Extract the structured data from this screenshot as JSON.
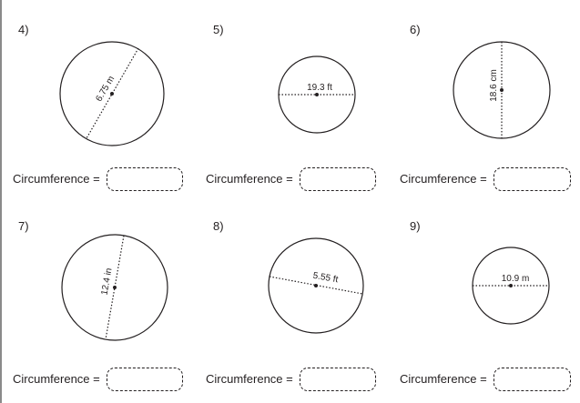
{
  "problems": [
    {
      "number": "4)",
      "measure": "6.75 m",
      "answer_label": "Circumference =",
      "answer_value": ""
    },
    {
      "number": "5)",
      "measure": "19.3 ft",
      "answer_label": "Circumference =",
      "answer_value": ""
    },
    {
      "number": "6)",
      "measure": "18.6 cm",
      "answer_label": "Circumference =",
      "answer_value": ""
    },
    {
      "number": "7)",
      "measure": "12.4 in",
      "answer_label": "Circumference =",
      "answer_value": ""
    },
    {
      "number": "8)",
      "measure": "5.55 ft",
      "answer_label": "Circumference =",
      "answer_value": ""
    },
    {
      "number": "9)",
      "measure": "10.9 m",
      "answer_label": "Circumference =",
      "answer_value": ""
    }
  ]
}
